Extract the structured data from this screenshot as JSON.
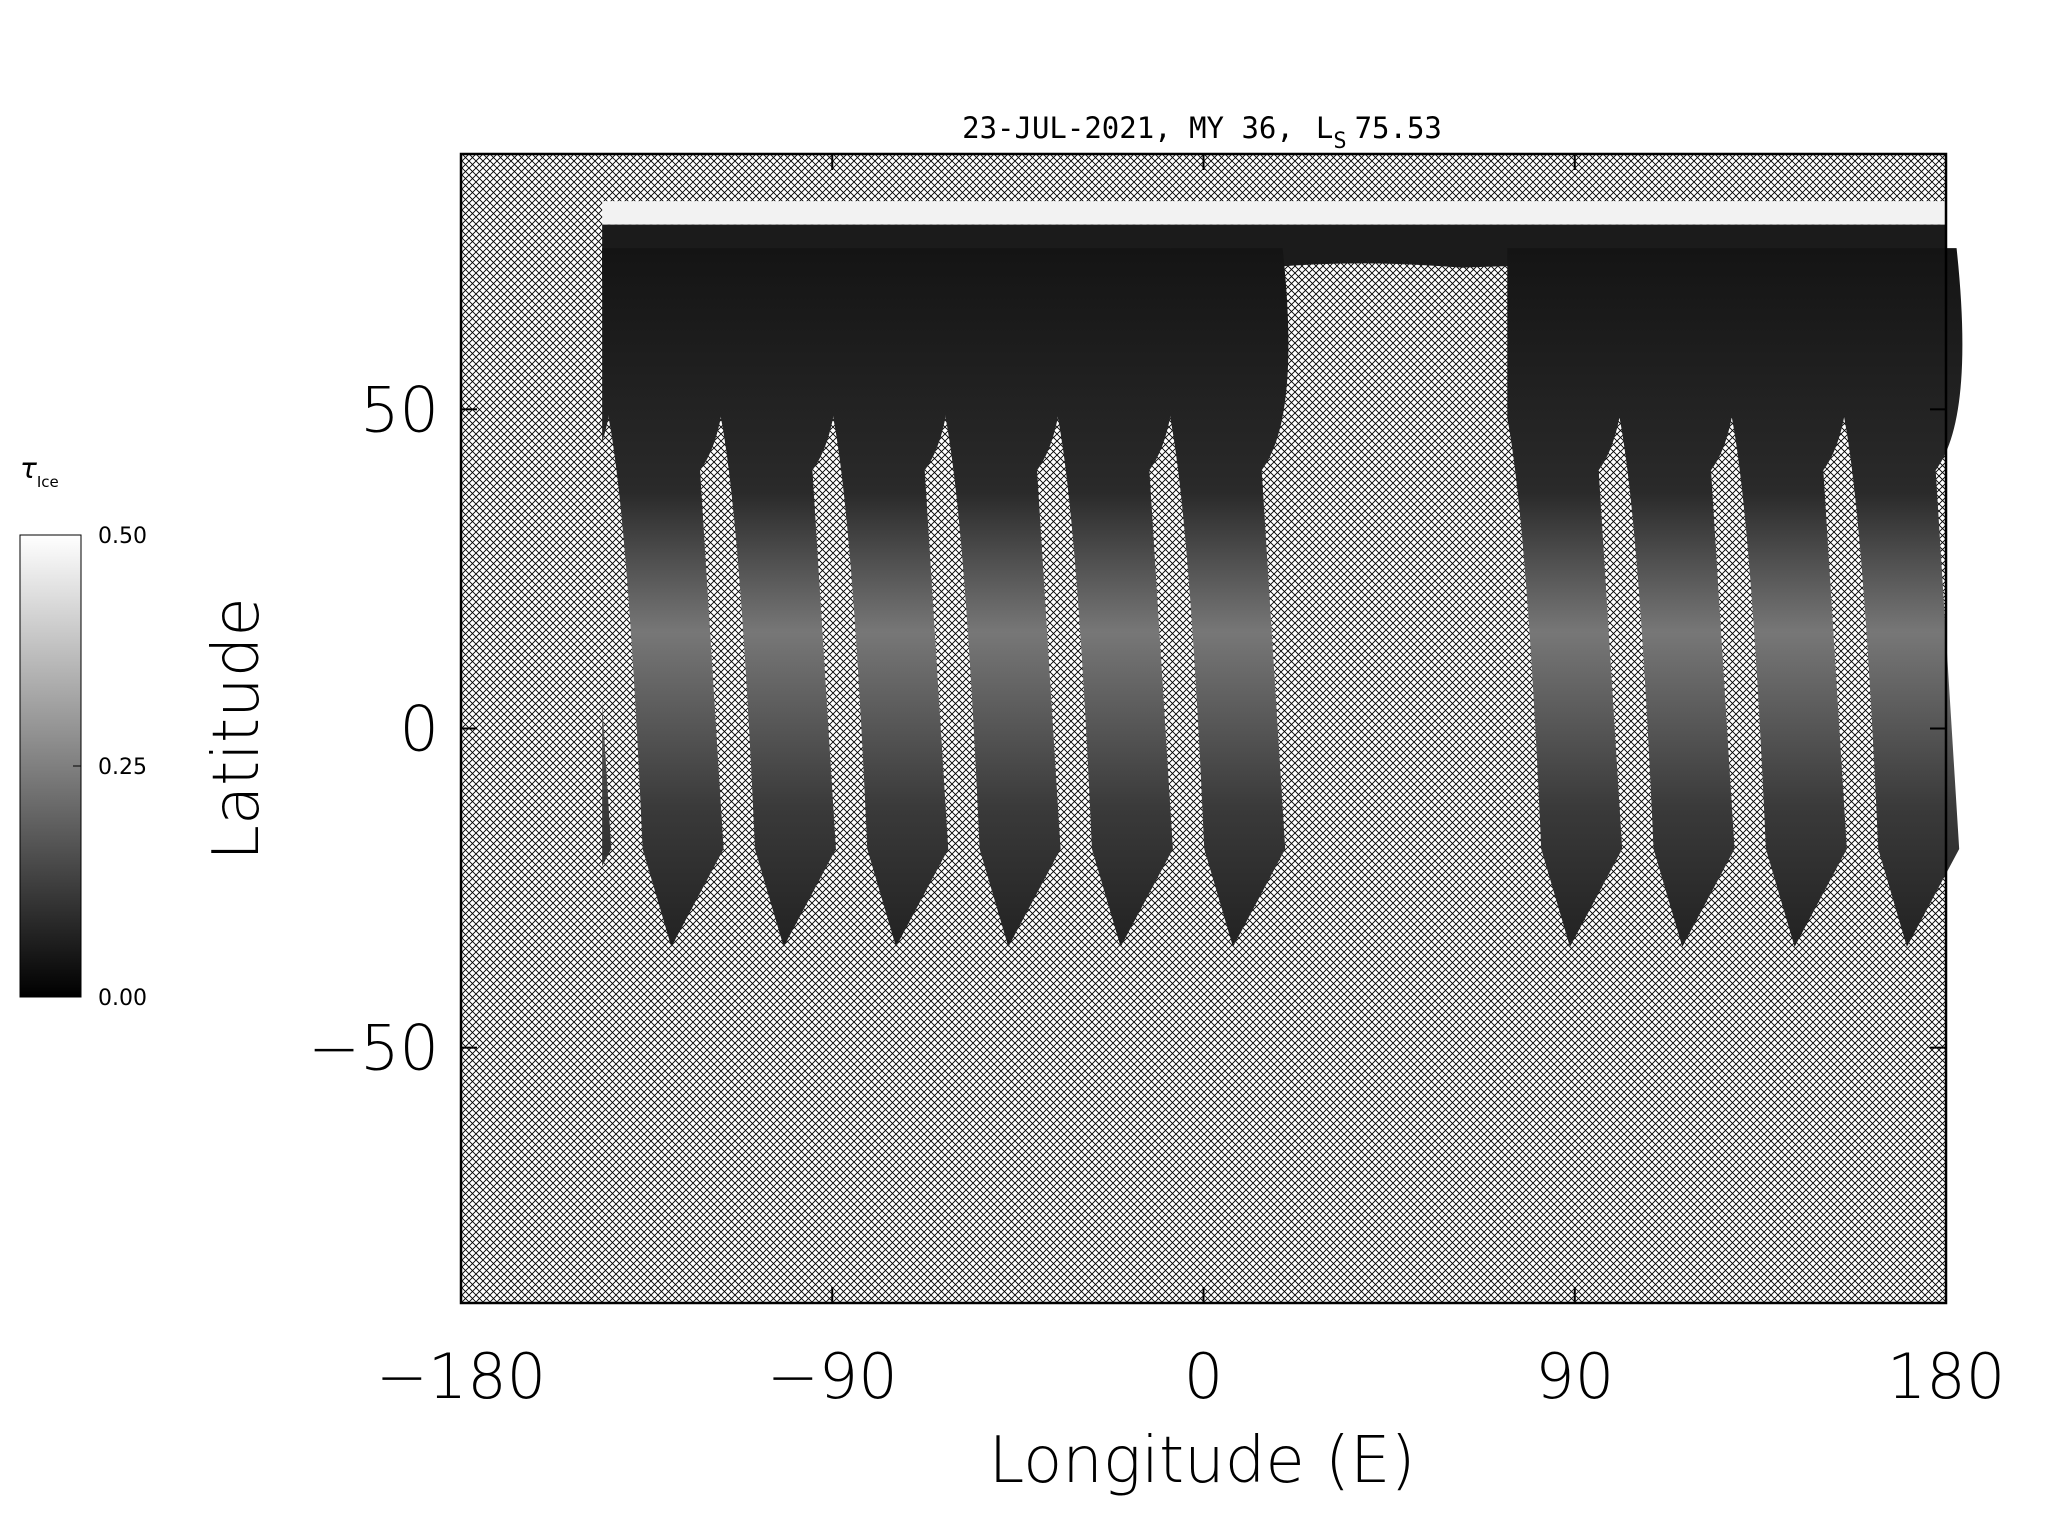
{
  "chart_data": {
    "type": "map",
    "title": {
      "main": "23-JUL-2021, MY 36,",
      "ls_label": "L",
      "ls_subscript": "S",
      "ls_value": "75.53"
    },
    "x_label": "Longitude (E)",
    "y_label": "Latitude",
    "xlim": [
      -180,
      180
    ],
    "xticks": [
      {
        "value": -180,
        "label": "−180"
      },
      {
        "value": -90,
        "label": "−90"
      },
      0,
      90,
      180
    ],
    "ylim": [
      -90,
      90
    ],
    "yticks": [
      {
        "value": -50,
        "label": "−50"
      },
      0,
      50
    ],
    "colorbar": {
      "label": "τ",
      "label_subscript": "Ice",
      "lim": [
        0,
        0.5
      ],
      "ticks": [
        {
          "value": 0,
          "label": "0.00"
        },
        {
          "value": 0.25,
          "label": "0.25"
        },
        {
          "value": 0.5,
          "label": "0.50"
        }
      ],
      "colors": [
        "#000000",
        "#ffffff"
      ]
    }
  }
}
